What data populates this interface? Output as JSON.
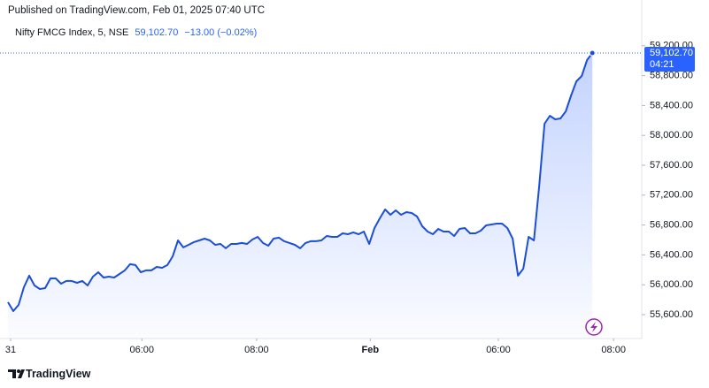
{
  "chart_data": {
    "type": "line",
    "title": "Published on TradingView.com, Feb 01, 2025 07:40 UTC",
    "symbol": "Nifty FMCG Index, 5, NSE",
    "last_label": "59,102.70",
    "change_label": "−13.00 (−0.02%)",
    "countdown": "04:21",
    "brand": "TradingView",
    "x": [
      0,
      1,
      2,
      3,
      4,
      5,
      6,
      7,
      8,
      9,
      10,
      11,
      12,
      13,
      14,
      15,
      16,
      17,
      18,
      19,
      20,
      21,
      22,
      23,
      24,
      25,
      26,
      27,
      28,
      29,
      30,
      31,
      32,
      33,
      34,
      35,
      36,
      37,
      38,
      39,
      40,
      41,
      42,
      43,
      44,
      45,
      46,
      47,
      48,
      49,
      50,
      51,
      52,
      53,
      54,
      55,
      56,
      57,
      58,
      59,
      60,
      61,
      62,
      63,
      64,
      65,
      66,
      67,
      68,
      69,
      70,
      71,
      72,
      73,
      74,
      75,
      76,
      77,
      78,
      79,
      80,
      81,
      82,
      83,
      84,
      85,
      86,
      87,
      88,
      89,
      90,
      91,
      92,
      93,
      94,
      95,
      96,
      97,
      98,
      99,
      100,
      101,
      102,
      103,
      104,
      105,
      106,
      107,
      108,
      109,
      110
    ],
    "series": [
      {
        "name": "Nifty FMCG Index",
        "color": "#1c4fd8",
        "values": [
          55766,
          55647,
          55730,
          55967,
          56121,
          55990,
          55943,
          55955,
          56085,
          56085,
          56014,
          56050,
          56050,
          56026,
          56050,
          55990,
          56109,
          56168,
          56097,
          56109,
          56097,
          56144,
          56192,
          56275,
          56263,
          56168,
          56192,
          56192,
          56239,
          56227,
          56263,
          56381,
          56594,
          56500,
          56535,
          56571,
          56594,
          56618,
          56594,
          56535,
          56547,
          56488,
          56547,
          56547,
          56559,
          56547,
          56606,
          56641,
          56559,
          56523,
          56618,
          56630,
          56583,
          56559,
          56535,
          56488,
          56559,
          56583,
          56583,
          56594,
          56653,
          56641,
          56641,
          56689,
          56677,
          56701,
          56677,
          56712,
          56547,
          56760,
          56890,
          57008,
          56937,
          56996,
          56937,
          56973,
          56961,
          56914,
          56783,
          56712,
          56677,
          56748,
          56712,
          56712,
          56653,
          56748,
          56760,
          56689,
          56689,
          56724,
          56795,
          56807,
          56819,
          56819,
          56760,
          56618,
          56121,
          56215,
          56641,
          56594,
          57328,
          58156,
          58263,
          58215,
          58227,
          58322,
          58535,
          58724,
          58795,
          59008,
          59102.7
        ]
      }
    ],
    "xlim": [
      -1.5,
      119.3
    ],
    "xticks": [
      {
        "value": 0.5,
        "label": "31"
      },
      {
        "value": 25.2,
        "label": "06:00"
      },
      {
        "value": 46.8,
        "label": "08:00"
      },
      {
        "value": 68.2,
        "label": "Feb"
      },
      {
        "value": 92.3,
        "label": "06:00"
      },
      {
        "value": 114,
        "label": "08:00"
      }
    ],
    "ylim": [
      55280,
      59387
    ],
    "yticks": [
      {
        "value": 55600,
        "label": "55,600.00"
      },
      {
        "value": 56000,
        "label": "56,000.00"
      },
      {
        "value": 56400,
        "label": "56,400.00"
      },
      {
        "value": 56800,
        "label": "56,800.00"
      },
      {
        "value": 57200,
        "label": "57,200.00"
      },
      {
        "value": 57600,
        "label": "57,600.00"
      },
      {
        "value": 58000,
        "label": "58,000.00"
      },
      {
        "value": 58400,
        "label": "58,400.00"
      },
      {
        "value": 58800,
        "label": "58,800.00"
      },
      {
        "value": 59200,
        "label": "59,200.00"
      }
    ],
    "grid": false
  }
}
